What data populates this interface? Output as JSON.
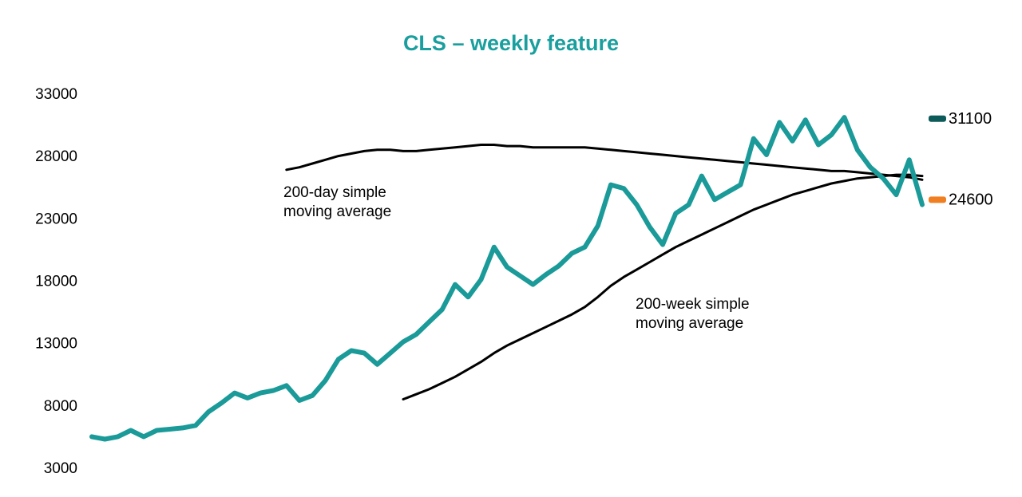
{
  "chart_data": {
    "type": "line",
    "title": "CLS – weekly feature",
    "ylim": [
      3000,
      33000
    ],
    "yticks": [
      3000,
      8000,
      13000,
      18000,
      23000,
      28000,
      33000
    ],
    "grid": false,
    "series": [
      {
        "name": "CLS",
        "color": "#1a9a98",
        "values": [
          5600,
          5400,
          5600,
          6100,
          5600,
          6100,
          6200,
          6300,
          6500,
          7600,
          8300,
          9100,
          8700,
          9100,
          9300,
          9700,
          8500,
          8900,
          10100,
          11800,
          12500,
          12300,
          11400,
          12300,
          13200,
          13800,
          14800,
          15800,
          17800,
          16800,
          18200,
          20800,
          19200,
          18500,
          17800,
          18600,
          19300,
          20300,
          20800,
          22500,
          25800,
          25500,
          24200,
          22400,
          21000,
          23500,
          24200,
          26500,
          24600,
          25200,
          25800,
          29500,
          28200,
          30800,
          29300,
          31000,
          29000,
          29800,
          31200,
          28600,
          27200,
          26300,
          25000,
          27800,
          24200
        ]
      },
      {
        "name": "200-day simple moving average",
        "color": "#000000",
        "values": [
          null,
          null,
          null,
          null,
          null,
          null,
          null,
          null,
          null,
          null,
          null,
          null,
          null,
          null,
          null,
          27000,
          27200,
          27500,
          27800,
          28100,
          28300,
          28500,
          28600,
          28600,
          28500,
          28500,
          28600,
          28700,
          28800,
          28900,
          29000,
          29000,
          28900,
          28900,
          28800,
          28800,
          28800,
          28800,
          28800,
          28700,
          28600,
          28500,
          28400,
          28300,
          28200,
          28100,
          28000,
          27900,
          27800,
          27700,
          27600,
          27500,
          27400,
          27300,
          27200,
          27100,
          27000,
          26900,
          26900,
          26800,
          26700,
          26600,
          26500,
          26400,
          26200
        ]
      },
      {
        "name": "200-week simple moving average",
        "color": "#000000",
        "values": [
          null,
          null,
          null,
          null,
          null,
          null,
          null,
          null,
          null,
          null,
          null,
          null,
          null,
          null,
          null,
          null,
          null,
          null,
          null,
          null,
          null,
          null,
          null,
          null,
          8600,
          9000,
          9400,
          9900,
          10400,
          11000,
          11600,
          12300,
          12900,
          13400,
          13900,
          14400,
          14900,
          15400,
          16000,
          16800,
          17700,
          18400,
          19000,
          19600,
          20200,
          20800,
          21300,
          21800,
          22300,
          22800,
          23300,
          23800,
          24200,
          24600,
          25000,
          25300,
          25600,
          25900,
          26100,
          26300,
          26400,
          26500,
          26600,
          26600,
          26500
        ]
      }
    ],
    "markers": [
      {
        "value": 31100,
        "color": "#0d5a5a"
      },
      {
        "value": 24600,
        "color": "#f07f22"
      }
    ]
  }
}
